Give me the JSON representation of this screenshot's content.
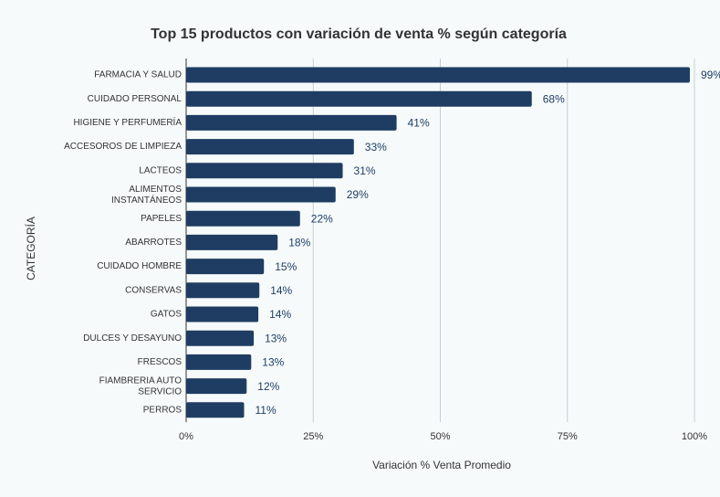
{
  "chart_data": {
    "type": "bar",
    "orientation": "horizontal",
    "title": "Top 15 productos con variación de venta % según categoría",
    "x_label": "Variación % Venta Promedio",
    "y_label": "CATEGORÍA",
    "categories": [
      "FARMACIA Y SALUD",
      "CUIDADO PERSONAL",
      "HIGIENE Y PERFUMERÍA",
      "ACCESOROS DE LIMPIEZA",
      "LACTEOS",
      "ALIMENTOS\nINSTANTÁNEOS",
      "PAPELES",
      "ABARROTES",
      "CUIDADO HOMBRE",
      "CONSERVAS",
      "GATOS",
      "DULCES Y DESAYUNO",
      "FRESCOS",
      "FIAMBRERIA AUTO\nSERVICIO",
      "PERROS"
    ],
    "values": [
      99.1,
      68,
      41.4,
      33,
      30.8,
      29.4,
      22.4,
      18,
      15.3,
      14.4,
      14.2,
      13.3,
      12.8,
      11.9,
      11.4
    ],
    "value_labels": [
      "99%",
      "68%",
      "41%",
      "33%",
      "31%",
      "29%",
      "22%",
      "18%",
      "15%",
      "14%",
      "14%",
      "13%",
      "13%",
      "12%",
      "11%"
    ],
    "color": "#1f3d63",
    "xlim": [
      0,
      100
    ],
    "xticks": [
      {
        "value": 0,
        "label": "0%"
      },
      {
        "value": 25,
        "label": "25%"
      },
      {
        "value": 50,
        "label": "50%"
      },
      {
        "value": 75,
        "label": "75%"
      },
      {
        "value": 100,
        "label": "100%"
      }
    ],
    "grid": true
  }
}
